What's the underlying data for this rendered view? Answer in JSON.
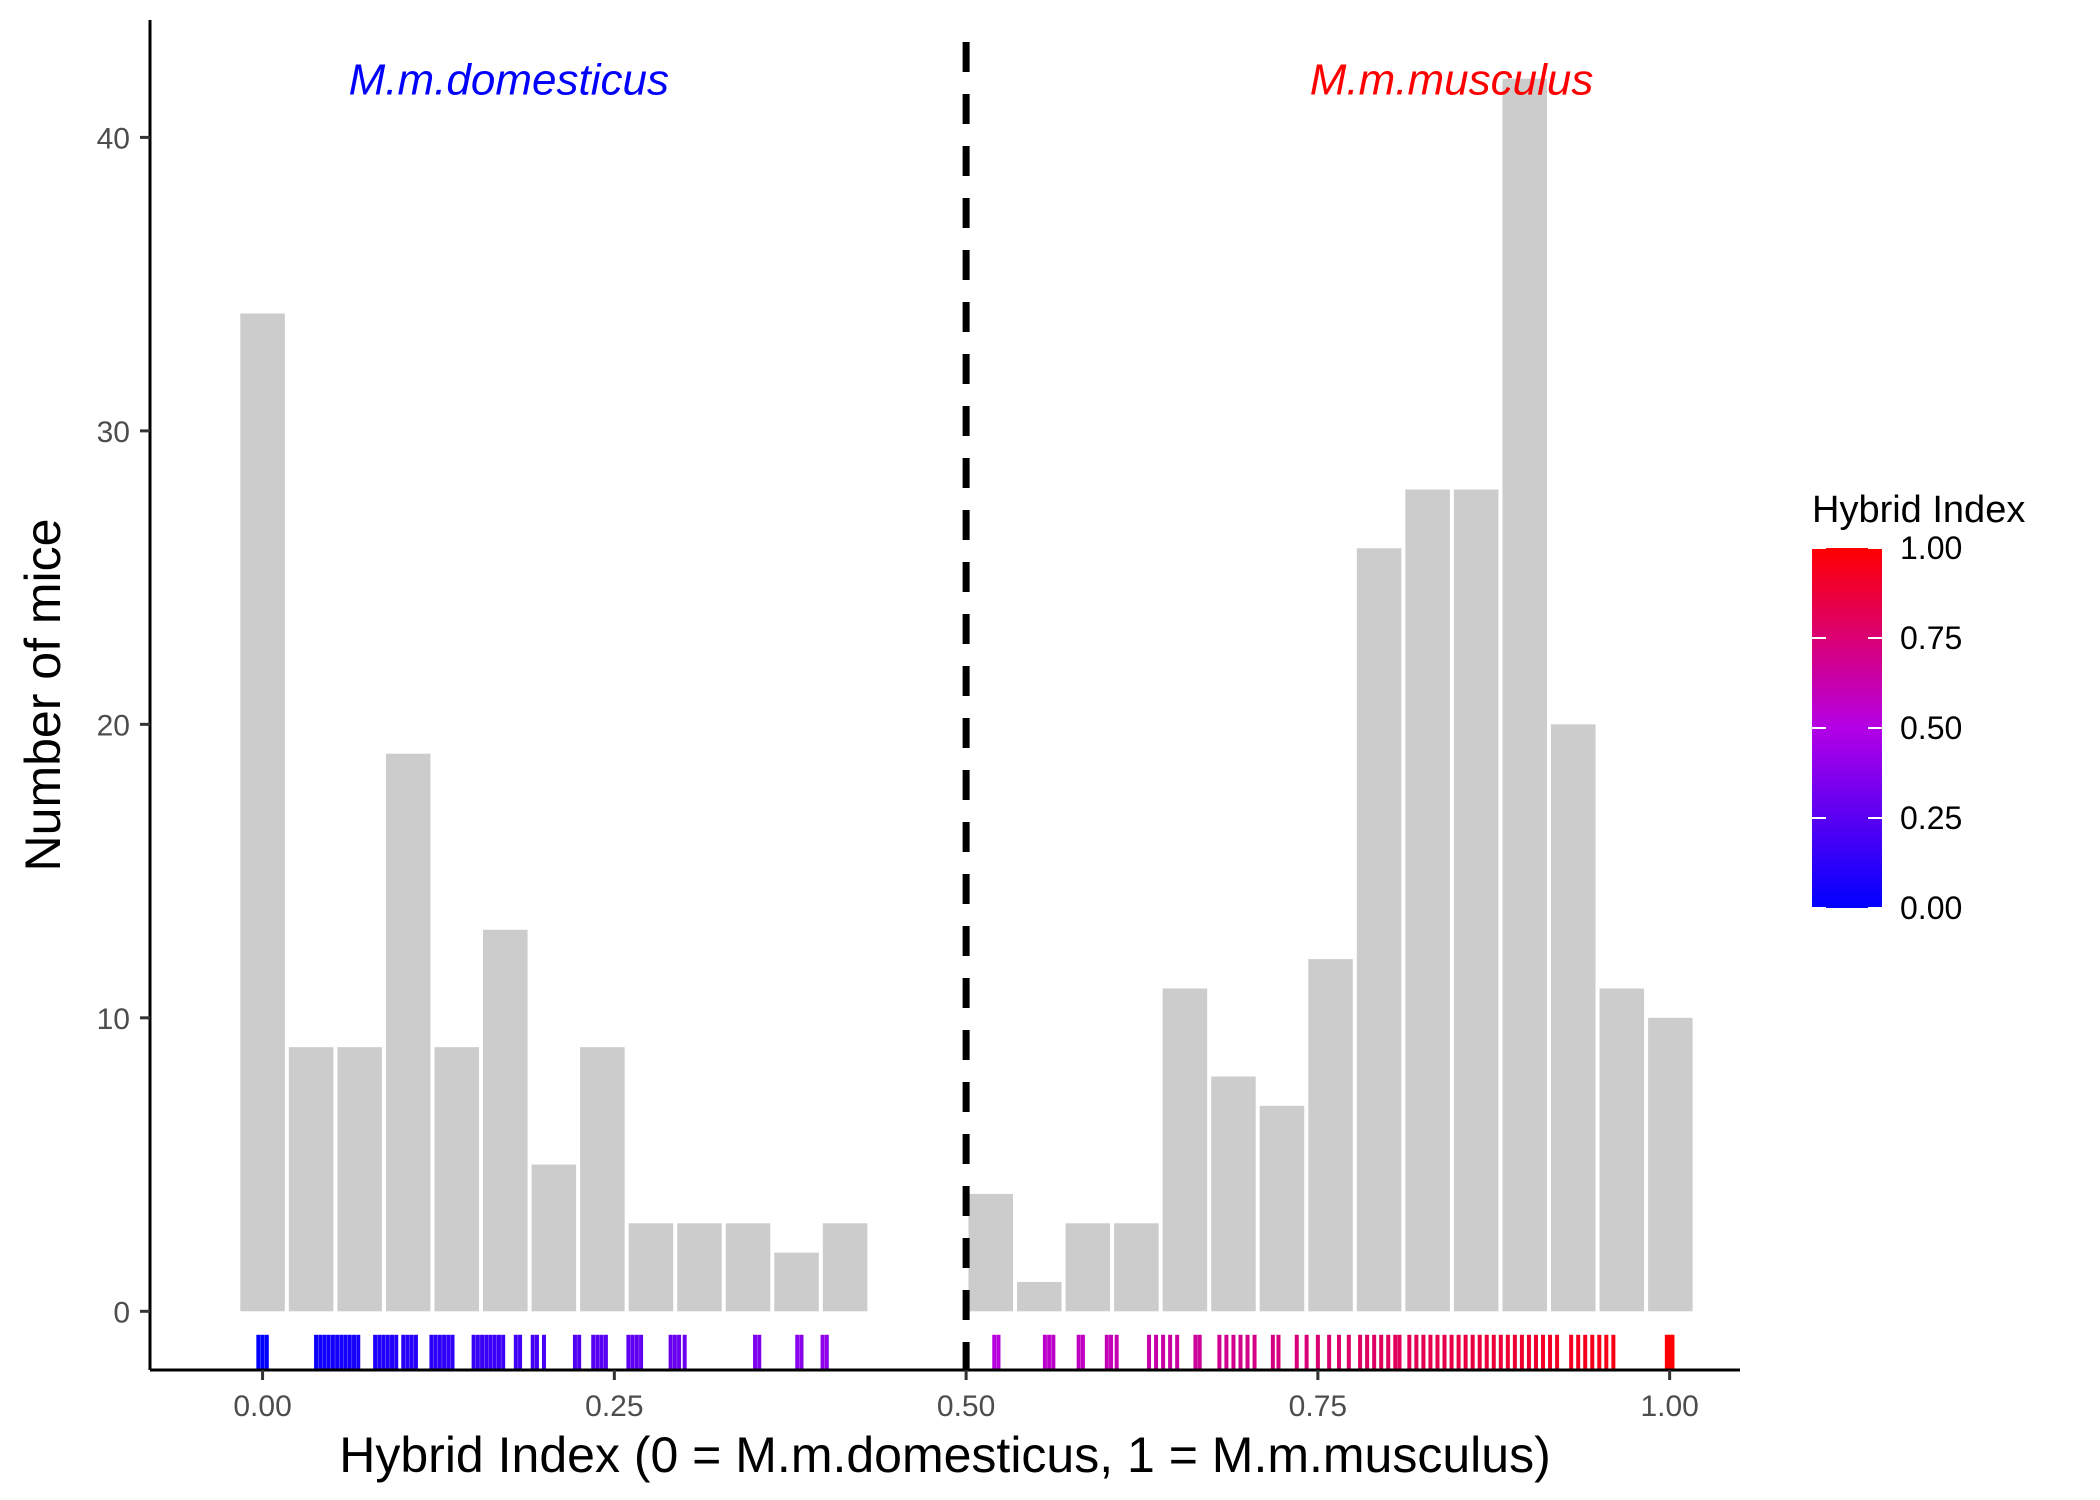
{
  "chart_data": {
    "type": "bar",
    "xlabel": "Hybrid Index (0 = M.m.domesticus, 1 = M.m.musculus)",
    "ylabel": "Number of mice",
    "xlim": [
      -0.08,
      1.05
    ],
    "ylim": [
      -2,
      44
    ],
    "x_ticks": [
      0.0,
      0.25,
      0.5,
      0.75,
      1.0
    ],
    "x_tick_labels": [
      "0.00",
      "0.25",
      "0.50",
      "0.75",
      "1.00"
    ],
    "y_ticks": [
      0,
      10,
      20,
      30,
      40
    ],
    "y_tick_labels": [
      "0",
      "10",
      "20",
      "30",
      "40"
    ],
    "grid": false,
    "bar_width": 0.0345,
    "bar_color": "#cccccc",
    "bars": [
      {
        "x": 0.0,
        "value": 34
      },
      {
        "x": 0.0345,
        "value": 9
      },
      {
        "x": 0.069,
        "value": 9
      },
      {
        "x": 0.1035,
        "value": 19
      },
      {
        "x": 0.138,
        "value": 9
      },
      {
        "x": 0.1725,
        "value": 13
      },
      {
        "x": 0.207,
        "value": 5
      },
      {
        "x": 0.2415,
        "value": 9
      },
      {
        "x": 0.276,
        "value": 3
      },
      {
        "x": 0.3105,
        "value": 3
      },
      {
        "x": 0.345,
        "value": 3
      },
      {
        "x": 0.3795,
        "value": 2
      },
      {
        "x": 0.414,
        "value": 3
      },
      {
        "x": 0.5175,
        "value": 4
      },
      {
        "x": 0.552,
        "value": 1
      },
      {
        "x": 0.5865,
        "value": 3
      },
      {
        "x": 0.621,
        "value": 3
      },
      {
        "x": 0.6555,
        "value": 11
      },
      {
        "x": 0.69,
        "value": 8
      },
      {
        "x": 0.7245,
        "value": 7
      },
      {
        "x": 0.759,
        "value": 12
      },
      {
        "x": 0.7935,
        "value": 26
      },
      {
        "x": 0.828,
        "value": 28
      },
      {
        "x": 0.8625,
        "value": 28
      },
      {
        "x": 0.897,
        "value": 42
      },
      {
        "x": 0.9315,
        "value": 20
      },
      {
        "x": 0.966,
        "value": 11
      },
      {
        "x": 1.0005,
        "value": 10
      }
    ],
    "vline": {
      "x": 0.5,
      "style": "dashed",
      "color": "#000000"
    },
    "annotations": [
      {
        "text": "M.m.domesticus",
        "x": 0.175,
        "y": 42,
        "color": "#0000ff"
      },
      {
        "text": "M.m.musculus",
        "x": 0.845,
        "y": 42,
        "color": "#ff0000"
      }
    ],
    "rug": {
      "y_range": [
        -0.8,
        -2.0
      ],
      "values": [
        -0.003,
        0.0,
        0.003,
        0.038,
        0.041,
        0.044,
        0.047,
        0.05,
        0.053,
        0.056,
        0.059,
        0.062,
        0.065,
        0.068,
        0.08,
        0.083,
        0.086,
        0.089,
        0.092,
        0.095,
        0.1,
        0.103,
        0.106,
        0.109,
        0.12,
        0.123,
        0.126,
        0.129,
        0.132,
        0.135,
        0.15,
        0.153,
        0.156,
        0.159,
        0.162,
        0.165,
        0.168,
        0.171,
        0.18,
        0.183,
        0.192,
        0.195,
        0.2,
        0.222,
        0.225,
        0.235,
        0.238,
        0.241,
        0.244,
        0.26,
        0.263,
        0.266,
        0.269,
        0.29,
        0.293,
        0.296,
        0.3,
        0.35,
        0.353,
        0.38,
        0.383,
        0.398,
        0.401,
        0.52,
        0.523,
        0.556,
        0.559,
        0.562,
        0.58,
        0.583,
        0.6,
        0.603,
        0.607,
        0.63,
        0.635,
        0.64,
        0.645,
        0.65,
        0.663,
        0.666,
        0.68,
        0.685,
        0.69,
        0.695,
        0.7,
        0.705,
        0.718,
        0.722,
        0.735,
        0.742,
        0.75,
        0.758,
        0.765,
        0.772,
        0.78,
        0.785,
        0.79,
        0.795,
        0.8,
        0.805,
        0.808,
        0.815,
        0.82,
        0.825,
        0.83,
        0.835,
        0.84,
        0.845,
        0.85,
        0.855,
        0.86,
        0.865,
        0.87,
        0.875,
        0.88,
        0.885,
        0.89,
        0.895,
        0.9,
        0.905,
        0.91,
        0.915,
        0.92,
        0.93,
        0.935,
        0.94,
        0.945,
        0.95,
        0.955,
        0.96,
        0.998,
        1.0,
        1.002
      ]
    },
    "legend": {
      "title": "Hybrid Index",
      "placement": "right",
      "gradient": [
        "#0000ff",
        "#ff0000"
      ],
      "ticks": [
        1.0,
        0.75,
        0.5,
        0.25,
        0.0
      ],
      "tick_labels": [
        "1.00",
        "0.75",
        "0.50",
        "0.25",
        "0.00"
      ]
    }
  }
}
